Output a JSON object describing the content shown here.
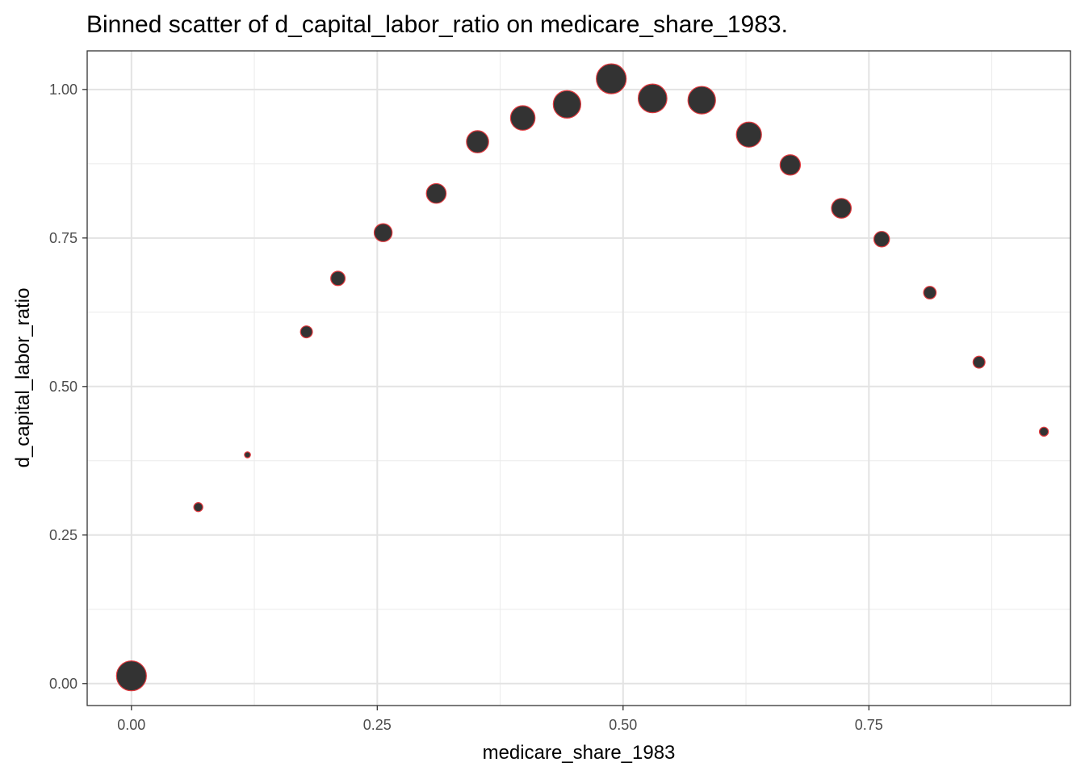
{
  "chart_data": {
    "type": "scatter",
    "title": "Binned scatter of d_capital_labor_ratio on medicare_share_1983.",
    "xlabel": "medicare_share_1983",
    "ylabel": "d_capital_labor_ratio",
    "xlim": [
      -0.045,
      0.955
    ],
    "ylim": [
      -0.037,
      1.065
    ],
    "x_ticks": [
      0,
      0.25,
      0.5,
      0.75
    ],
    "x_tick_labels": [
      "0.00",
      "0.25",
      "0.50",
      "0.75"
    ],
    "y_ticks": [
      0,
      0.25,
      0.5,
      0.75,
      1
    ],
    "y_tick_labels": [
      "0.00",
      "0.25",
      "0.50",
      "0.75",
      "1.00"
    ],
    "grid": true,
    "legend": "none",
    "point_fill": "#333333",
    "point_stroke": "#e0393e",
    "relative_size_scale": "point radius is proportional to bin count (values are relative, unitless)",
    "points": [
      {
        "x": 0.0,
        "y": 0.013,
        "relative_size": 10
      },
      {
        "x": 0.068,
        "y": 0.297,
        "relative_size": 3
      },
      {
        "x": 0.118,
        "y": 0.385,
        "relative_size": 2
      },
      {
        "x": 0.178,
        "y": 0.592,
        "relative_size": 4
      },
      {
        "x": 0.21,
        "y": 0.682,
        "relative_size": 4.8
      },
      {
        "x": 0.256,
        "y": 0.759,
        "relative_size": 6
      },
      {
        "x": 0.31,
        "y": 0.825,
        "relative_size": 6.6
      },
      {
        "x": 0.352,
        "y": 0.912,
        "relative_size": 7.4
      },
      {
        "x": 0.398,
        "y": 0.952,
        "relative_size": 8.2
      },
      {
        "x": 0.443,
        "y": 0.975,
        "relative_size": 9.2
      },
      {
        "x": 0.488,
        "y": 1.018,
        "relative_size": 10
      },
      {
        "x": 0.53,
        "y": 0.985,
        "relative_size": 9.6
      },
      {
        "x": 0.58,
        "y": 0.982,
        "relative_size": 9.2
      },
      {
        "x": 0.628,
        "y": 0.924,
        "relative_size": 8.4
      },
      {
        "x": 0.67,
        "y": 0.873,
        "relative_size": 6.8
      },
      {
        "x": 0.722,
        "y": 0.8,
        "relative_size": 6.6
      },
      {
        "x": 0.763,
        "y": 0.748,
        "relative_size": 5.2
      },
      {
        "x": 0.812,
        "y": 0.658,
        "relative_size": 4.2
      },
      {
        "x": 0.862,
        "y": 0.541,
        "relative_size": 4
      },
      {
        "x": 0.928,
        "y": 0.424,
        "relative_size": 3
      }
    ]
  }
}
